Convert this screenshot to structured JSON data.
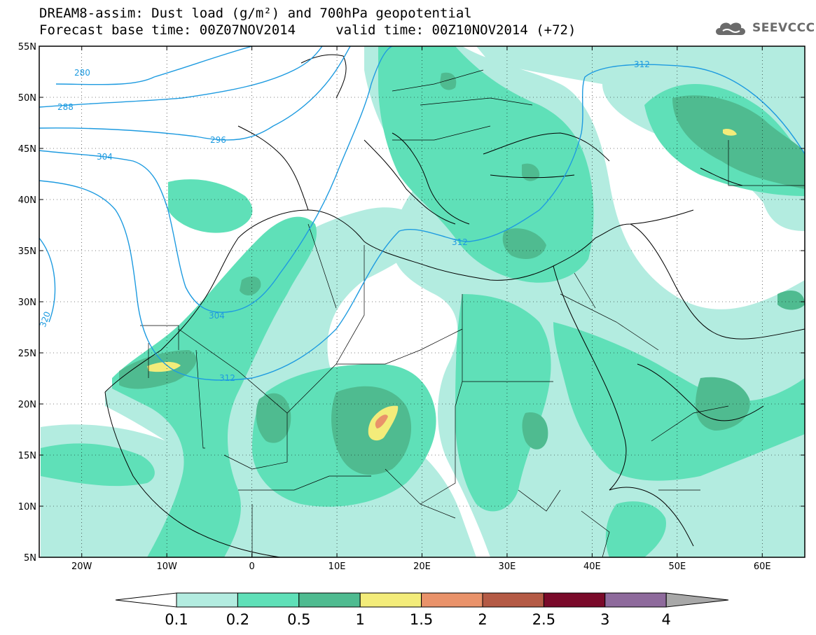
{
  "title": {
    "line1": "DREAM8-assim: Dust load (g/m²) and 700hPa geopotential",
    "line2": "Forecast base time: 00Z07NOV2014     valid time: 00Z10NOV2014 (+72)"
  },
  "logo": {
    "text": "SEEVCCC",
    "icon": "cloud-icon",
    "color": "#6b6b6b"
  },
  "map": {
    "lat_labels": [
      "55N",
      "50N",
      "45N",
      "40N",
      "35N",
      "30N",
      "25N",
      "20N",
      "15N",
      "10N",
      "5N"
    ],
    "lon_labels": [
      "20W",
      "10W",
      "0",
      "10E",
      "20E",
      "30E",
      "40E",
      "50E",
      "60E"
    ],
    "lat_range": [
      5,
      55
    ],
    "lon_range": [
      -25,
      65
    ],
    "grid": true,
    "contour_labels": [
      "280",
      "288",
      "296",
      "304",
      "312",
      "304",
      "312",
      "312",
      "320"
    ],
    "contour_color": "#1e9be0"
  },
  "colorbar": {
    "labels": [
      "0.1",
      "0.2",
      "0.5",
      "1",
      "1.5",
      "2",
      "2.5",
      "3",
      "4"
    ],
    "colors": [
      "#ffffff",
      "#b3ece0",
      "#5fe0b8",
      "#4fbb90",
      "#f3ec7a",
      "#e9926a",
      "#b45a45",
      "#7a0a2a",
      "#8e6a9c",
      "#a8a8a8"
    ]
  }
}
